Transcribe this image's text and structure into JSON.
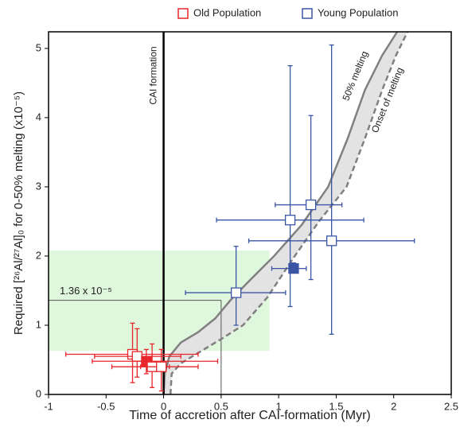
{
  "chart_data": {
    "type": "scatter",
    "xlabel": "Time of accretion after CAI-formation (Myr)",
    "ylabel": "Required [²⁶Al/²⁷Al]₀ for 0-50% melting (x10⁻⁵)",
    "xlim": [
      -1,
      2.5
    ],
    "ylim": [
      0,
      5.24
    ],
    "xticks": [
      -1,
      -0.5,
      0,
      0.5,
      1,
      1.5,
      2,
      2.5
    ],
    "yticks": [
      0,
      1,
      2,
      3,
      4,
      5
    ],
    "series": [
      {
        "name": "Old Population",
        "color": "#e8262b",
        "x": [
          -0.27,
          -0.23,
          -0.15,
          -0.1,
          -0.02
        ],
        "values": [
          0.58,
          0.55,
          0.48,
          0.4,
          0.4
        ],
        "x_min": [
          -0.85,
          -0.6,
          -0.62,
          -0.45,
          -0.2
        ],
        "x_max": [
          0.3,
          0.15,
          0.47,
          0.3,
          0.05
        ],
        "y_min": [
          0.17,
          0.25,
          0.3,
          0.1,
          0.05
        ],
        "y_max": [
          1.03,
          0.95,
          0.65,
          0.73,
          0.65
        ],
        "filled": [
          false,
          false,
          true,
          false,
          false
        ]
      },
      {
        "name": "Young Population",
        "color": "#3b55a5",
        "x": [
          0.63,
          1.1,
          1.28,
          1.46,
          1.13
        ],
        "values": [
          1.47,
          2.52,
          2.74,
          2.22,
          1.82
        ],
        "x_min": [
          0.19,
          0.46,
          0.97,
          0.74,
          0.94
        ],
        "x_max": [
          1.06,
          1.74,
          1.55,
          2.18,
          1.24
        ],
        "y_min": [
          1.0,
          1.27,
          1.66,
          0.87,
          1.78
        ],
        "y_max": [
          2.14,
          4.75,
          4.03,
          5.05,
          1.9
        ],
        "filled": [
          false,
          false,
          false,
          false,
          true
        ]
      }
    ],
    "curves": [
      {
        "name": "50% melting",
        "color": "#808080",
        "dashed": false,
        "x": [
          0,
          0.01,
          0.05,
          0.15,
          0.3,
          0.45,
          0.58,
          0.75,
          0.96,
          1.2,
          1.43,
          1.6,
          1.75,
          1.9,
          2.03
        ],
        "values": [
          0,
          0.3,
          0.55,
          0.75,
          0.9,
          1.1,
          1.36,
          1.65,
          2.0,
          2.45,
          3.0,
          3.7,
          4.4,
          4.9,
          5.24
        ]
      },
      {
        "name": "Onset of melting",
        "color": "#808080",
        "dashed": true,
        "x": [
          0.06,
          0.07,
          0.15,
          0.3,
          0.5,
          0.69,
          0.9,
          1.14,
          1.35,
          1.59,
          1.75,
          1.9,
          2.02,
          2.12
        ],
        "values": [
          0,
          0.3,
          0.45,
          0.6,
          0.8,
          1.0,
          1.4,
          2.0,
          2.5,
          3.0,
          3.7,
          4.4,
          4.9,
          5.24
        ]
      }
    ],
    "vline": {
      "x": 0,
      "label": "CAI formation"
    },
    "region": {
      "x": [
        -1,
        0.92
      ],
      "y": [
        0.63,
        2.08
      ],
      "color": "#dff7dc"
    },
    "reference": {
      "x": 0.5,
      "y": 1.36,
      "label": "1.36 x 10⁻⁵"
    }
  }
}
